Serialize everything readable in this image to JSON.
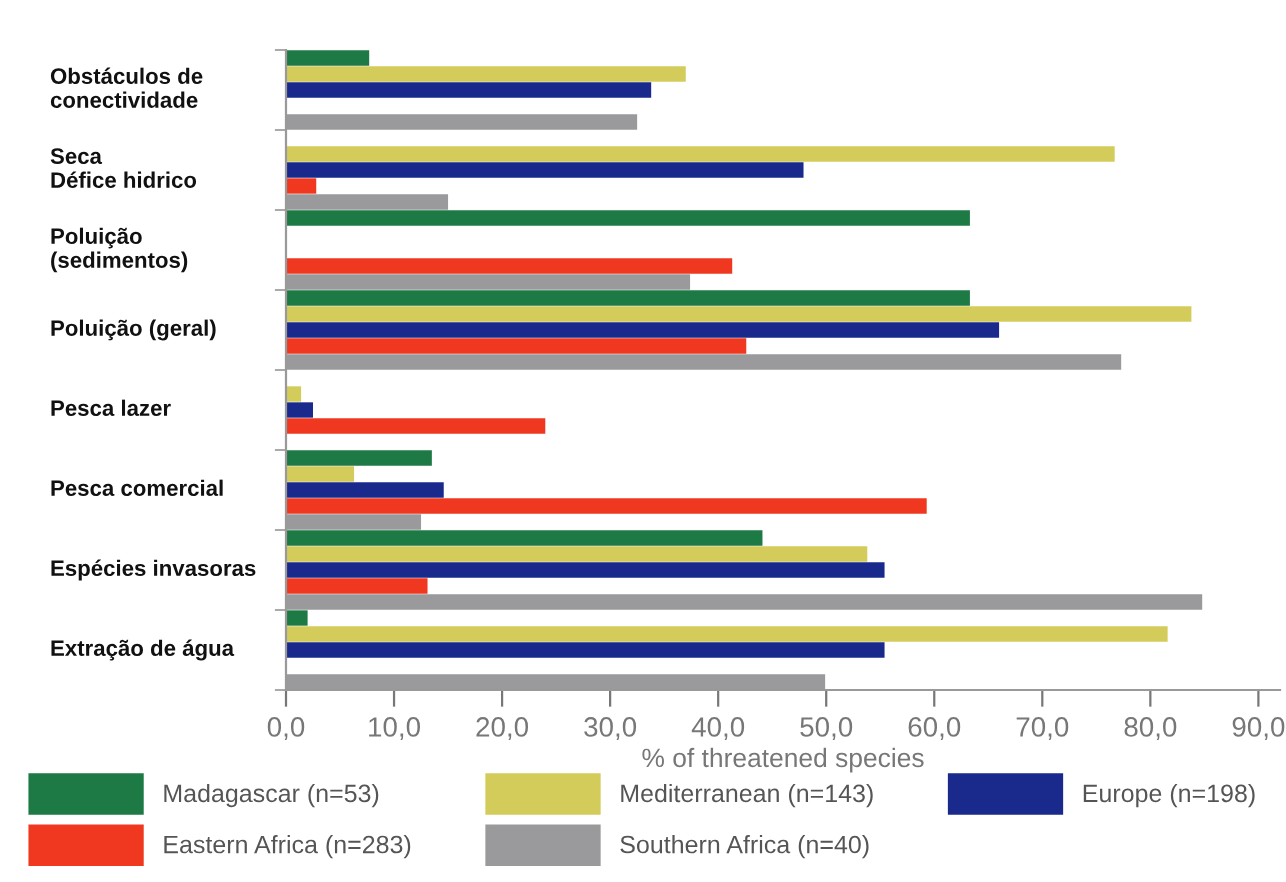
{
  "chart_data": {
    "type": "bar",
    "orientation": "horizontal",
    "xlabel": "% of threatened species",
    "categories": [
      "Obstáculos de\nconectividade",
      "Seca\nDéfice hidrico",
      "Poluição\n(sedimentos)",
      "Poluição (geral)",
      "Pesca lazer",
      "Pesca comercial",
      "Espécies invasoras",
      "Extração de água"
    ],
    "series": [
      {
        "name": "Madagascar (n=53)",
        "color": "#1e7a45",
        "values": [
          7.7,
          null,
          63.3,
          63.3,
          null,
          13.5,
          44.1,
          2.0
        ]
      },
      {
        "name": "Mediterranean (n=143)",
        "color": "#d4cc5a",
        "values": [
          37.0,
          76.7,
          null,
          83.8,
          1.4,
          6.3,
          53.8,
          81.6
        ]
      },
      {
        "name": "Europe (n=198)",
        "color": "#1a2a8c",
        "values": [
          33.8,
          47.9,
          null,
          66.0,
          2.5,
          14.6,
          55.4,
          55.4
        ]
      },
      {
        "name": "Eastern Africa (n=283)",
        "color": "#f03820",
        "values": [
          null,
          2.8,
          41.3,
          42.6,
          24.0,
          59.3,
          13.1,
          null
        ]
      },
      {
        "name": "Southern Africa (n=40)",
        "color": "#9a9a9c",
        "values": [
          32.5,
          15.0,
          37.4,
          77.3,
          null,
          12.5,
          84.8,
          49.9
        ]
      }
    ],
    "xlim": [
      0,
      92
    ],
    "xticks": [
      {
        "value": 0,
        "label": "0,0"
      },
      {
        "value": 10,
        "label": "10,0"
      },
      {
        "value": 20,
        "label": "20,0"
      },
      {
        "value": 30,
        "label": "30,0"
      },
      {
        "value": 40,
        "label": "40,0"
      },
      {
        "value": 50,
        "label": "50,0"
      },
      {
        "value": 60,
        "label": "60,0"
      },
      {
        "value": 70,
        "label": "70,0"
      },
      {
        "value": 80,
        "label": "80,0"
      },
      {
        "value": 90,
        "label": "90,0"
      }
    ],
    "legend": "bottom",
    "grid": false
  }
}
